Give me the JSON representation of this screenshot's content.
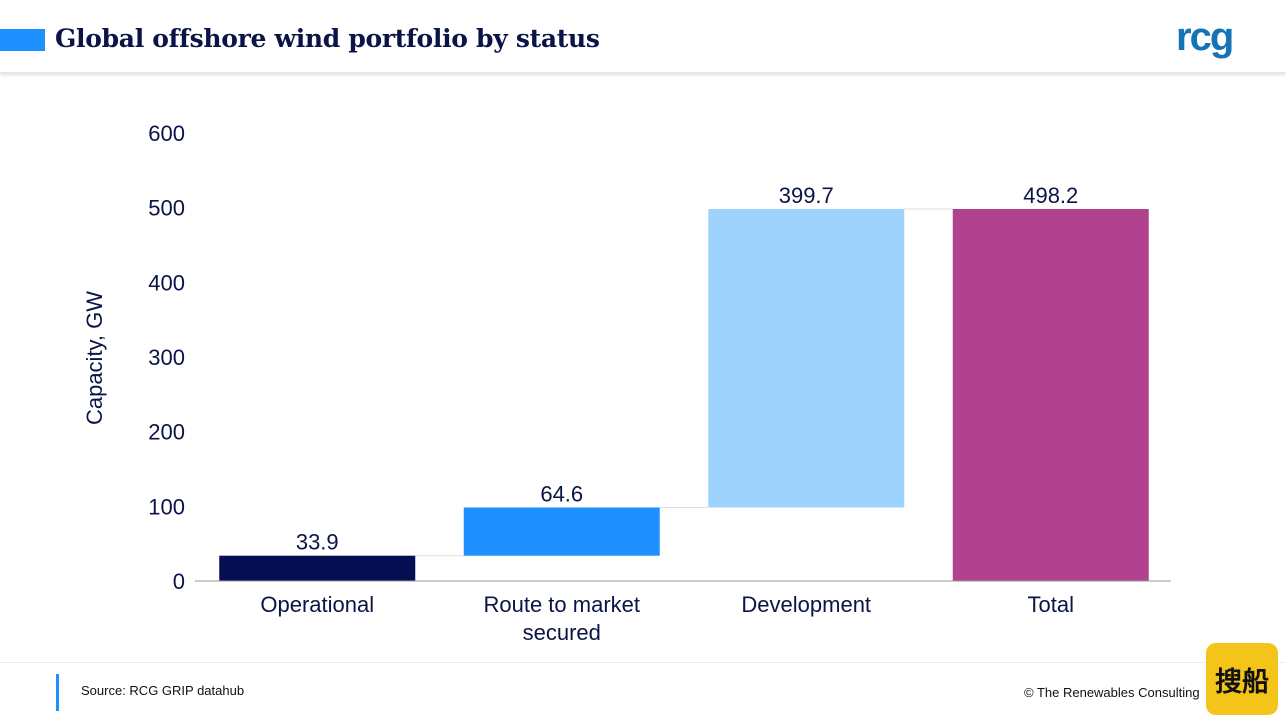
{
  "header": {
    "title": "Global offshore wind portfolio by status",
    "accent_color": "#1e90ff",
    "logo_text": "rcg",
    "logo_color": "#1573b8"
  },
  "chart_data": {
    "type": "bar",
    "subtype": "waterfall",
    "categories": [
      "Operational",
      "Route to market secured",
      "Development",
      "Total"
    ],
    "category_lines": [
      [
        "Operational"
      ],
      [
        "Route to market",
        "secured"
      ],
      [
        "Development"
      ],
      [
        "Total"
      ]
    ],
    "values": [
      33.9,
      64.6,
      399.7,
      498.2
    ],
    "bar_starts": [
      0,
      33.9,
      98.5,
      0
    ],
    "value_labels": [
      "33.9",
      "64.6",
      "399.7",
      "498.2"
    ],
    "colors": [
      "#060f52",
      "#1e90ff",
      "#9dd3fd",
      "#b0428f"
    ],
    "ylabel": "Capacity, GW",
    "ylim": [
      0,
      600
    ],
    "yticks": [
      0,
      100,
      200,
      300,
      400,
      500,
      600
    ],
    "grid": false,
    "connectors": true
  },
  "footer": {
    "source": "Source: RCG GRIP datahub",
    "copyright": "© The Renewables Consulting",
    "watermark_text": "搜船"
  }
}
